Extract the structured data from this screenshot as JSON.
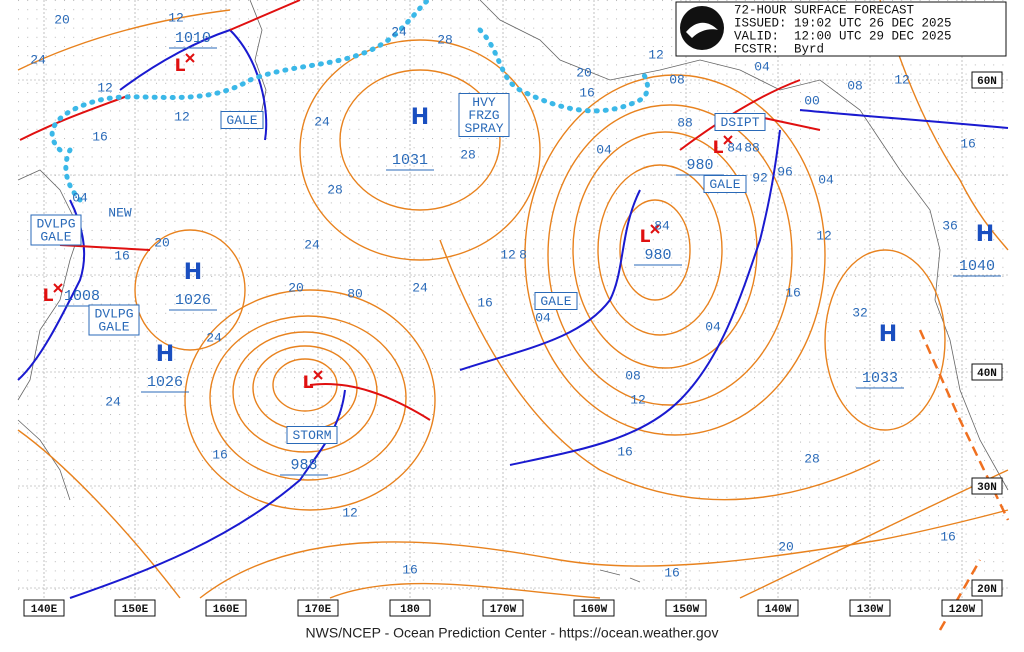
{
  "header": {
    "title": "72-HOUR SURFACE FORECAST",
    "issued": "ISSUED: 19:02 UTC 26 DEC 2025",
    "valid": "VALID:  12:00 UTC 29 DEC 2025",
    "forecaster": "FCSTR:  Byrd"
  },
  "longitude_labels": [
    "140E",
    "150E",
    "160E",
    "170E",
    "180",
    "170W",
    "160W",
    "150W",
    "140W",
    "130W",
    "120W"
  ],
  "latitude_labels": [
    "60N",
    "40N",
    "30N",
    "20N"
  ],
  "pressure_centers": [
    {
      "type": "H",
      "pressure": "1031"
    },
    {
      "type": "H",
      "pressure": "1026"
    },
    {
      "type": "H",
      "pressure": "1026"
    },
    {
      "type": "H",
      "pressure": "1033"
    },
    {
      "type": "H",
      "pressure": "1040"
    },
    {
      "type": "L",
      "pressure": "988"
    },
    {
      "type": "L",
      "pressure": "980"
    },
    {
      "type": "L",
      "pressure": "980"
    },
    {
      "type": "L",
      "pressure": "1008"
    },
    {
      "type": "L",
      "pressure": "1010"
    }
  ],
  "warnings": [
    [
      "GALE"
    ],
    [
      "HVY",
      "FRZG",
      "SPRAY"
    ],
    [
      "DVLPG",
      "GALE"
    ],
    [
      "DVLPG",
      "GALE"
    ],
    [
      "GALE"
    ],
    [
      "STORM"
    ],
    [
      "DSIPT"
    ],
    [
      "GALE"
    ]
  ],
  "notes": [
    "NEW"
  ],
  "isobar_labels": [
    "20",
    "12",
    "24",
    "12",
    "16",
    "12",
    "24",
    "28",
    "24",
    "20",
    "16",
    "20",
    "80",
    "24",
    "24",
    "24",
    "16",
    "12",
    "16",
    "28",
    "24",
    "28",
    "12",
    "8",
    "16",
    "04",
    "08",
    "12",
    "16",
    "04",
    "12",
    "20",
    "16",
    "04",
    "08",
    "88",
    "84",
    "88",
    "92",
    "96",
    "04",
    "00",
    "08",
    "12",
    "16",
    "36",
    "32",
    "28",
    "20",
    "16",
    "16",
    "84",
    "12",
    "16",
    "04",
    "04"
  ],
  "footer": "NWS/NCEP - Ocean Prediction Center - https://ocean.weather.gov"
}
